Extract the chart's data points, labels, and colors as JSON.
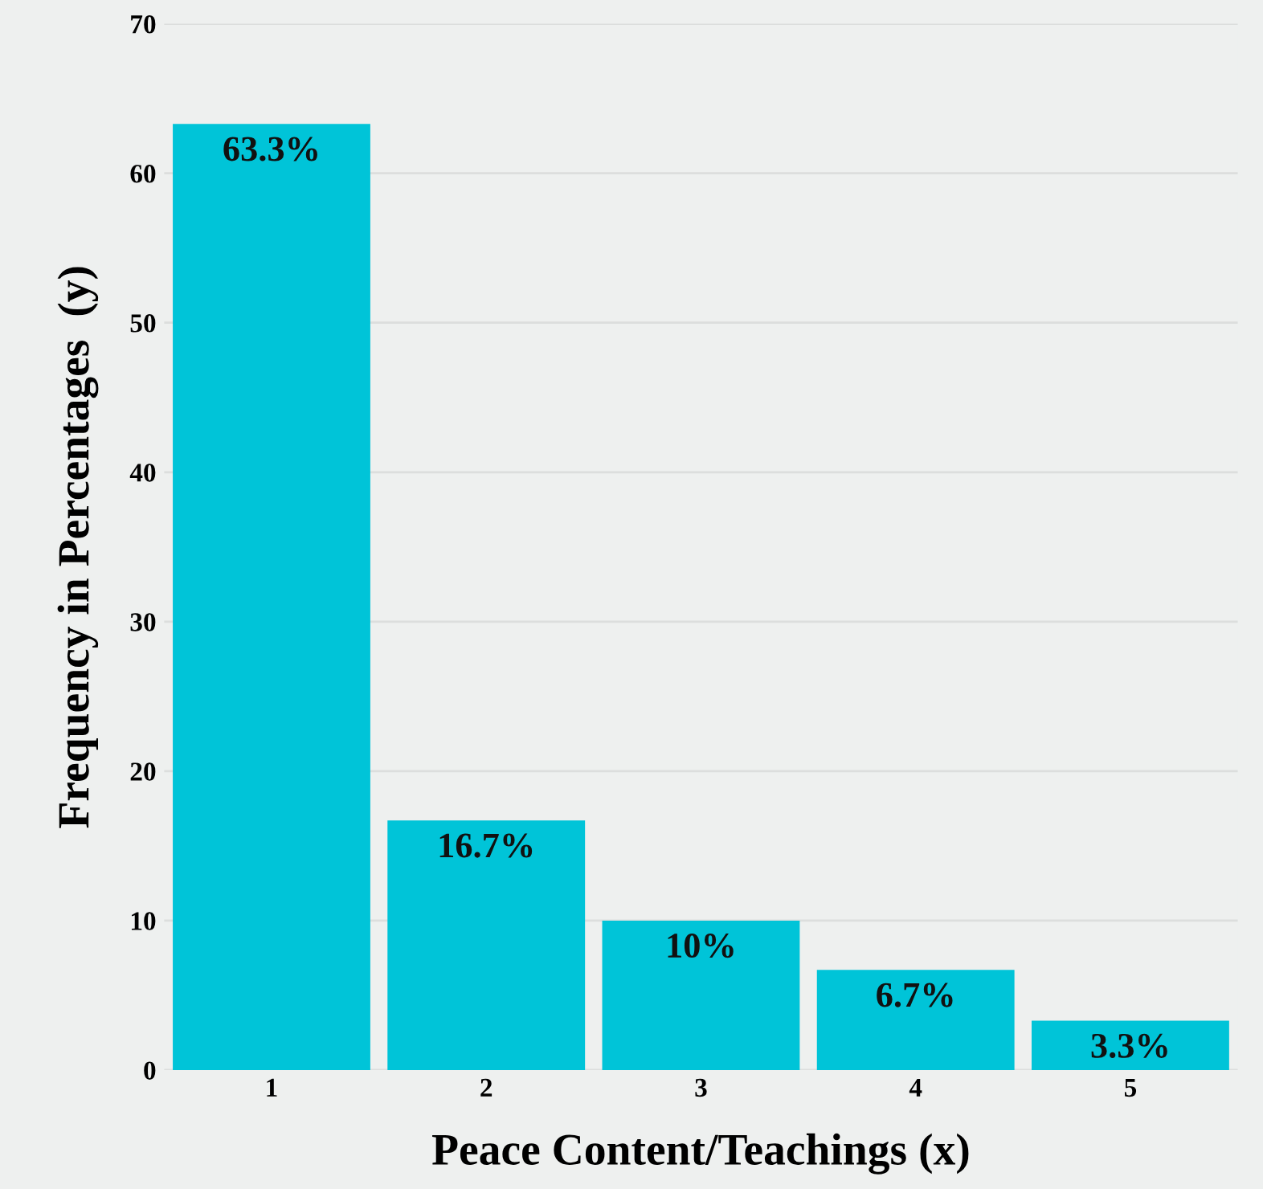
{
  "chart_data": {
    "type": "bar",
    "xlabel": "Peace Content/Teachings (x)",
    "ylabel": "Frequency in Percentages  (y)",
    "categories": [
      "1",
      "2",
      "3",
      "4",
      "5"
    ],
    "values": [
      63.3,
      16.7,
      10,
      6.7,
      3.3
    ],
    "value_labels": [
      "63.3%",
      "16.7%",
      "10%",
      "6.7%",
      "3.3%"
    ],
    "color": "#00c4d8",
    "ylim": [
      0,
      70
    ],
    "yticks": [
      0,
      10,
      20,
      30,
      40,
      50,
      60,
      70
    ],
    "grid": "y"
  }
}
